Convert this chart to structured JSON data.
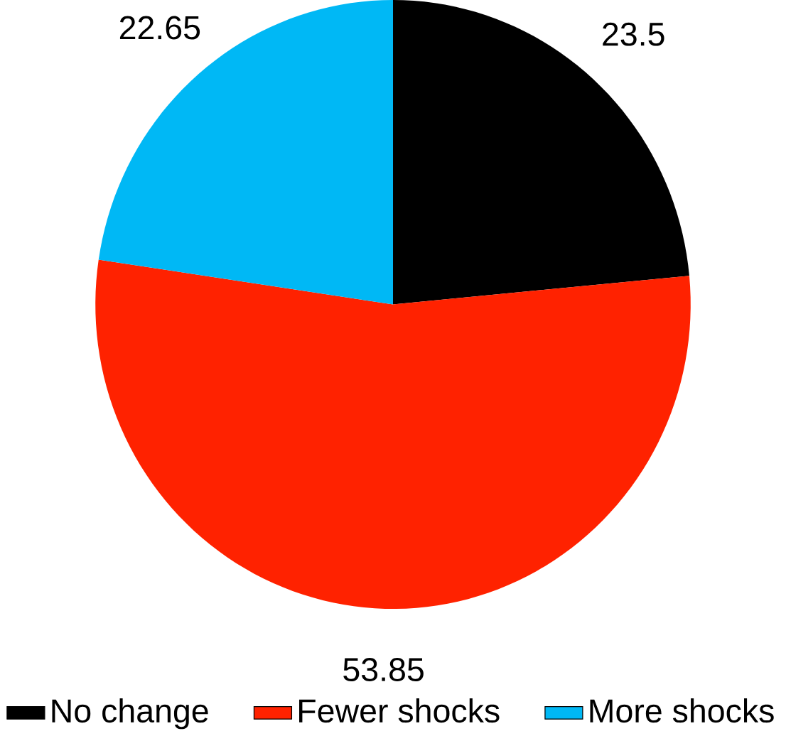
{
  "chart_data": {
    "type": "pie",
    "categories": [
      "No change",
      "Fewer shocks",
      "More shocks"
    ],
    "values": [
      23.5,
      53.85,
      22.65
    ],
    "colors": [
      "#000000",
      "#ff2200",
      "#00b8f5"
    ],
    "data_labels": true,
    "legend": "bottom"
  }
}
